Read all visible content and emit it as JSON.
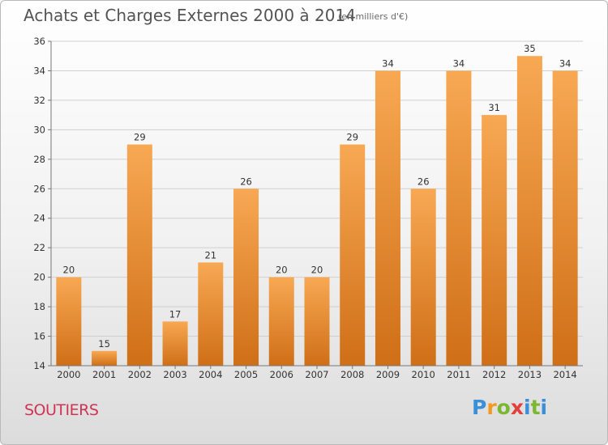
{
  "header": {
    "title": "Achats et Charges Externes 2000 à 2014",
    "subtitle": "(en milliers d'€)"
  },
  "footer": {
    "commune": "SOUTIERS",
    "logo_letters": [
      "P",
      "r",
      "o",
      "x",
      "i",
      "t",
      "i"
    ],
    "logo_colors": [
      "#3a8fd8",
      "#f29a1f",
      "#7ab831",
      "#e2403a",
      "#3a8fd8",
      "#7ab831",
      "#3a8fd8"
    ]
  },
  "colors": {
    "bar_top": "#f8a853",
    "bar_bottom": "#cf6f17",
    "grid": "#cfcfcf",
    "axis": "#777777"
  },
  "chart_data": {
    "type": "bar",
    "categories": [
      "2000",
      "2001",
      "2002",
      "2003",
      "2004",
      "2005",
      "2006",
      "2007",
      "2008",
      "2009",
      "2010",
      "2011",
      "2012",
      "2013",
      "2014"
    ],
    "values": [
      20,
      15,
      29,
      17,
      21,
      26,
      20,
      20,
      29,
      34,
      26,
      34,
      31,
      35,
      34
    ],
    "ylim": [
      14,
      36
    ],
    "yticks": [
      14,
      16,
      18,
      20,
      22,
      24,
      26,
      28,
      30,
      32,
      34,
      36
    ],
    "grid": true,
    "legend": "none"
  }
}
